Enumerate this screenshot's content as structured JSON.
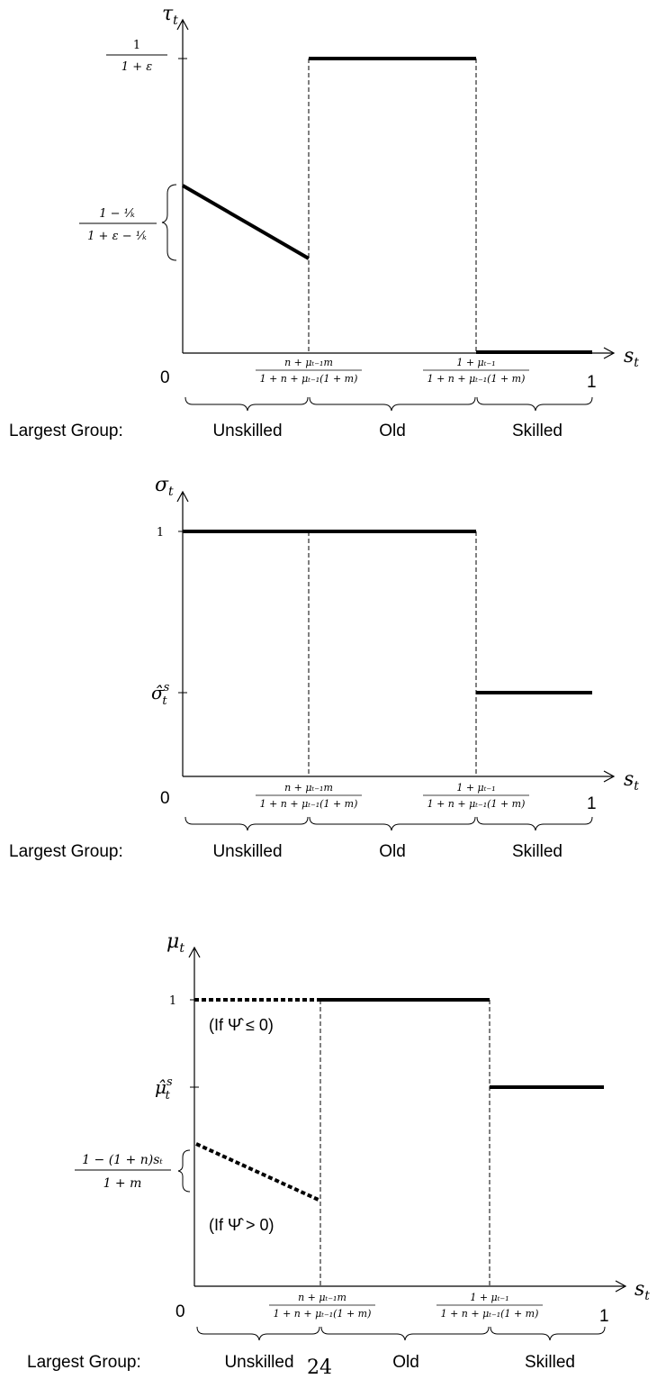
{
  "panels": [
    {
      "y_label_base": "τ",
      "y_label_sub": "t",
      "x_label_base": "s",
      "x_label_sub": "t",
      "origin": "0",
      "x_end": "1",
      "y_ticks": [
        {
          "num": "1",
          "den": "1 + ε"
        },
        {
          "num": "1 − ¹⁄ₖ",
          "den": "1 + ε − ¹⁄ₖ",
          "brace": true
        }
      ],
      "x_breaks": [
        {
          "num": "n + μₜ₋₁m",
          "den": "1 + n + μₜ₋₁(1 + m)"
        },
        {
          "num": "1 + μₜ₋₁",
          "den": "1 + n + μₜ₋₁(1 + m)"
        }
      ],
      "largest_group_label": "Largest Group:",
      "groups": [
        "Unskilled",
        "Old",
        "Skilled"
      ]
    },
    {
      "y_label_base": "σ",
      "y_label_sub": "t",
      "x_label_base": "s",
      "x_label_sub": "t",
      "origin": "0",
      "x_end": "1",
      "y_ticks": [
        {
          "text": "1"
        },
        {
          "base": "σ̂",
          "sup": "s",
          "sub": "t"
        }
      ],
      "x_breaks": [
        {
          "num": "n + μₜ₋₁m",
          "den": "1 + n + μₜ₋₁(1 + m)"
        },
        {
          "num": "1 + μₜ₋₁",
          "den": "1 + n + μₜ₋₁(1 + m)"
        }
      ],
      "largest_group_label": "Largest Group:",
      "groups": [
        "Unskilled",
        "Old",
        "Skilled"
      ]
    },
    {
      "y_label_base": "μ",
      "y_label_sub": "t",
      "x_label_base": "s",
      "x_label_sub": "t",
      "origin": "0",
      "x_end": "1",
      "y_ticks": [
        {
          "text": "1"
        },
        {
          "base": "μ̂",
          "sup": "s",
          "sub": "t"
        },
        {
          "num": "1 − (1 + n)sₜ",
          "den": "1 + m",
          "brace": true
        }
      ],
      "x_breaks": [
        {
          "num": "n + μₜ₋₁m",
          "den": "1 + n + μₜ₋₁(1 + m)"
        },
        {
          "num": "1 + μₜ₋₁",
          "den": "1 + n + μₜ₋₁(1 + m)"
        }
      ],
      "annotations": [
        "(If Ψ̂ ≤ 0)",
        "(If Ψ̂ > 0)"
      ],
      "largest_group_label": "Largest Group:",
      "groups": [
        "Unskilled",
        "Old",
        "Skilled"
      ]
    }
  ],
  "page_number": "24"
}
